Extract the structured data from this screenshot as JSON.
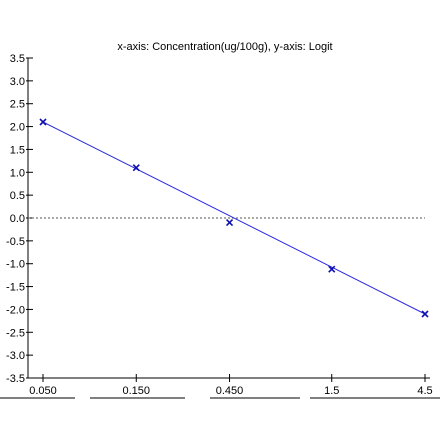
{
  "chart_data": {
    "type": "scatter",
    "title": "x-axis: Concentration(ug/100g), y-axis: Logit",
    "xlabel": "",
    "ylabel": "",
    "x_scale": "log",
    "x_ticks": [
      "0.050",
      "0.150",
      "0.450",
      "1.5",
      "4.5"
    ],
    "y_ticks": [
      "3.5",
      "3.0",
      "2.5",
      "2.0",
      "1.5",
      "1.0",
      "0.5",
      "0.0",
      "-0.5",
      "-1.0",
      "-1.5",
      "-2.0",
      "-2.5",
      "-3.0",
      "-3.5"
    ],
    "ylim": [
      -3.5,
      3.5
    ],
    "points": [
      {
        "x": 0.05,
        "y": 2.1
      },
      {
        "x": 0.15,
        "y": 1.1
      },
      {
        "x": 0.45,
        "y": -0.1
      },
      {
        "x": 1.5,
        "y": -1.12
      },
      {
        "x": 4.5,
        "y": -2.1
      }
    ],
    "fit_line": {
      "x": [
        0.05,
        4.5
      ],
      "y": [
        2.1,
        -2.1
      ]
    },
    "zero_reference_line": 0,
    "colors": {
      "points": "#1010b0",
      "fit": "#2a2ae0",
      "axis": "#000000",
      "zero_line": "#555555"
    }
  }
}
